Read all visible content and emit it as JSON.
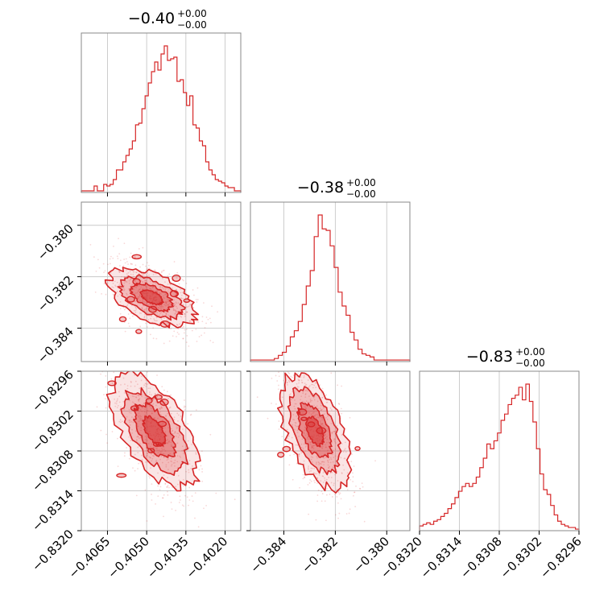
{
  "colors": {
    "series": "#d62728",
    "grid": "#c8c8c8",
    "frame": "#888888"
  },
  "chart_data": {
    "type": "corner",
    "grid": true,
    "parameters": [
      {
        "title": "−0.40",
        "err_plus": "+0.00",
        "err_minus": "−0.00",
        "range": [
          -0.4075,
          -0.4014
        ],
        "ticks": [
          -0.4065,
          -0.405,
          -0.4035,
          -0.402
        ],
        "tick_labels": [
          "−0.4065",
          "−0.4050",
          "−0.4035",
          "−0.4020"
        ],
        "hist_center": -0.4047,
        "hist_sd": 0.00075
      },
      {
        "title": "−0.38",
        "err_plus": "+0.00",
        "err_minus": "−0.00",
        "range": [
          -0.3853,
          -0.3791
        ],
        "ticks": [
          -0.384,
          -0.382,
          -0.38
        ],
        "tick_labels": [
          "−0.384",
          "−0.382",
          "−0.380"
        ],
        "hist_center": -0.3828,
        "hist_sd": 0.00062
      },
      {
        "title": "−0.83",
        "err_plus": "+0.00",
        "err_minus": "−0.00",
        "range": [
          -0.832,
          -0.8296
        ],
        "ticks": [
          -0.832,
          -0.8314,
          -0.8308,
          -0.8302,
          -0.8296
        ],
        "tick_labels": [
          "−0.8320",
          "−0.8314",
          "−0.8308",
          "−0.8302",
          "−0.8296"
        ],
        "hist_center": -0.8305,
        "hist_sd": 0.00048
      }
    ],
    "histograms": [
      {
        "param": 0,
        "bin_edges_range": [
          -0.4075,
          -0.4014
        ],
        "counts": [
          0.01,
          0.01,
          0.01,
          0.01,
          0.04,
          0.01,
          0.01,
          0.05,
          0.04,
          0.05,
          0.08,
          0.14,
          0.14,
          0.19,
          0.23,
          0.27,
          0.32,
          0.42,
          0.43,
          0.52,
          0.6,
          0.68,
          0.75,
          0.81,
          0.76,
          0.86,
          0.91,
          0.82,
          0.83,
          0.84,
          0.69,
          0.7,
          0.62,
          0.54,
          0.6,
          0.42,
          0.4,
          0.32,
          0.29,
          0.19,
          0.14,
          0.11,
          0.08,
          0.07,
          0.06,
          0.04,
          0.03,
          0.03,
          0.01,
          0.01
        ]
      },
      {
        "param": 1,
        "bin_edges_range": [
          -0.3853,
          -0.3791
        ],
        "counts": [
          0.01,
          0.01,
          0.01,
          0.01,
          0.01,
          0.01,
          0.02,
          0.04,
          0.06,
          0.1,
          0.16,
          0.2,
          0.26,
          0.37,
          0.49,
          0.59,
          0.81,
          0.95,
          0.86,
          0.85,
          0.75,
          0.61,
          0.45,
          0.36,
          0.3,
          0.19,
          0.14,
          0.08,
          0.05,
          0.04,
          0.03,
          0.01,
          0.01,
          0.01,
          0.01,
          0.01,
          0.01,
          0.01,
          0.01,
          0.01
        ]
      },
      {
        "param": 2,
        "bin_edges_range": [
          -0.832,
          -0.8296
        ],
        "counts": [
          0.03,
          0.04,
          0.05,
          0.04,
          0.06,
          0.07,
          0.09,
          0.11,
          0.14,
          0.17,
          0.21,
          0.25,
          0.28,
          0.3,
          0.28,
          0.3,
          0.34,
          0.4,
          0.46,
          0.55,
          0.52,
          0.57,
          0.62,
          0.7,
          0.74,
          0.8,
          0.84,
          0.86,
          0.91,
          0.83,
          0.93,
          0.82,
          0.69,
          0.52,
          0.36,
          0.26,
          0.23,
          0.16,
          0.1,
          0.06,
          0.04,
          0.03,
          0.02,
          0.02,
          0.01
        ]
      }
    ],
    "pairs": [
      {
        "x_param": 0,
        "y_param": 1,
        "center": [
          -0.4048,
          -0.3828
        ],
        "sd": [
          0.00075,
          0.00062
        ],
        "correlation": -0.55
      },
      {
        "x_param": 0,
        "y_param": 2,
        "center": [
          -0.4047,
          -0.8305
        ],
        "sd": [
          0.00075,
          0.00048
        ],
        "correlation": -0.6
      },
      {
        "x_param": 1,
        "y_param": 2,
        "center": [
          -0.3828,
          -0.8305
        ],
        "sd": [
          0.00062,
          0.00048
        ],
        "correlation": -0.55
      }
    ]
  }
}
